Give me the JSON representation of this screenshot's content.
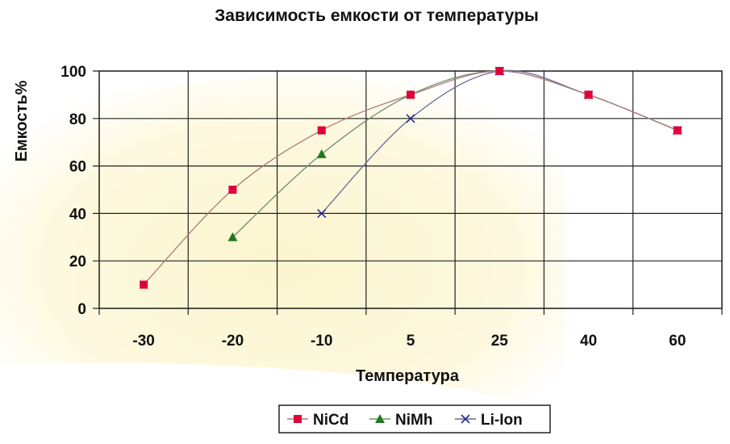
{
  "chart_data": {
    "type": "line",
    "title": "Зависимость емкости от температуры",
    "xlabel": "Температура",
    "ylabel": "Емкость%",
    "categories": [
      "-30",
      "-20",
      "-10",
      "5",
      "25",
      "40",
      "60"
    ],
    "ylim": [
      0,
      100
    ],
    "yticks": [
      0,
      20,
      40,
      60,
      80,
      100
    ],
    "grid": "vertical and horizontal",
    "legend": "bottom-right",
    "series": [
      {
        "name": "NiCd",
        "marker": "square",
        "color": "#e0003c",
        "line_color": "#b07a7a",
        "values": [
          10,
          50,
          75,
          90,
          100,
          90,
          75
        ]
      },
      {
        "name": "NiMh",
        "marker": "triangle",
        "color": "#1f7a1f",
        "line_color": "#6f8f6f",
        "values": [
          null,
          30,
          65,
          90,
          100,
          90,
          75
        ]
      },
      {
        "name": "Li-Ion",
        "marker": "x",
        "color": "#2a2a8a",
        "line_color": "#6a6a9a",
        "values": [
          null,
          null,
          40,
          80,
          100,
          90,
          75
        ]
      }
    ]
  }
}
